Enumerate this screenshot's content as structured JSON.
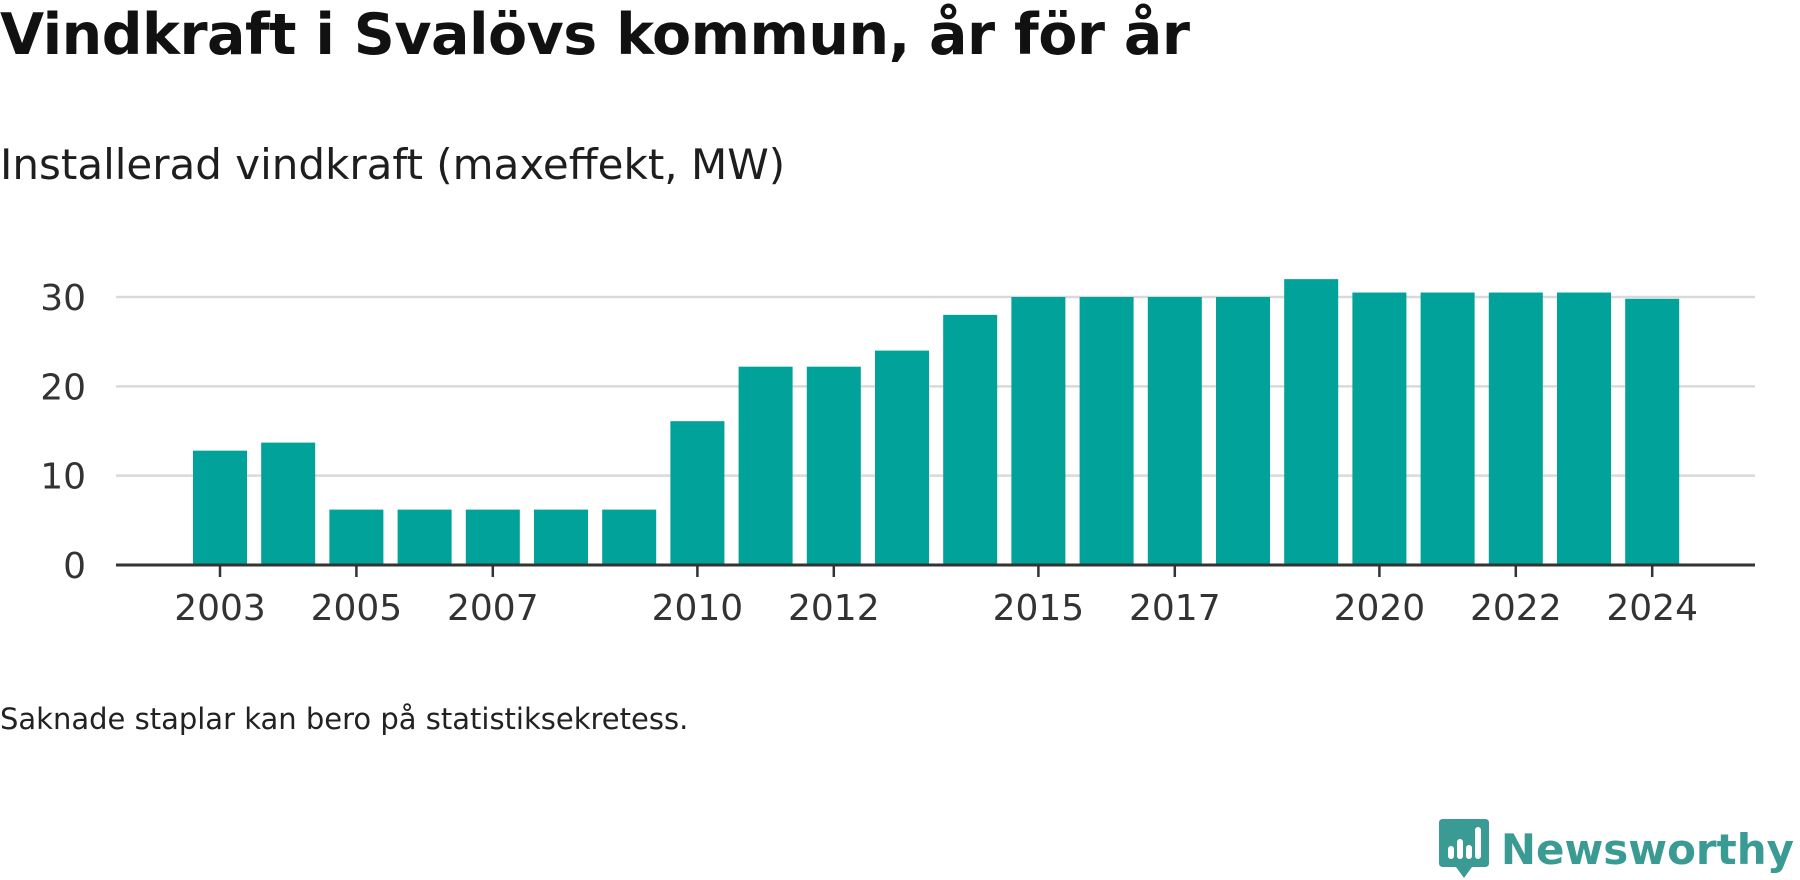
{
  "header": {
    "title": "Vindkraft i Svalövs kommun, år för år",
    "subtitle": "Installerad vindkraft (maxeffekt, MW)"
  },
  "footer": {
    "note": "Saknade staplar kan bero på statistiksekretess.",
    "brand": "Newsworthy",
    "brand_icon": "newsworthy-logo-icon"
  },
  "colors": {
    "bar": "#00a29a",
    "brand": "#3a9a94",
    "axis": "#333333",
    "grid": "#d9d9d9",
    "tick_text": "#333333"
  },
  "chart_data": {
    "type": "bar",
    "title": "Installerad vindkraft (maxeffekt, MW)",
    "categories": [
      "2003",
      "2004",
      "2005",
      "2006",
      "2007",
      "2008",
      "2009",
      "2010",
      "2011",
      "2012",
      "2013",
      "2014",
      "2015",
      "2016",
      "2017",
      "2018",
      "2019",
      "2020",
      "2021",
      "2022",
      "2023",
      "2024"
    ],
    "x_tick_labels": [
      "2003",
      "2005",
      "2007",
      "2010",
      "2012",
      "2015",
      "2017",
      "2020",
      "2022",
      "2024"
    ],
    "values": [
      12.8,
      13.7,
      6.2,
      6.2,
      6.2,
      6.2,
      6.2,
      16.1,
      22.2,
      22.2,
      24.0,
      28.0,
      30.0,
      30.0,
      30.0,
      30.0,
      32.0,
      30.5,
      30.5,
      30.5,
      30.5,
      29.8
    ],
    "y_ticks": [
      0,
      10,
      20,
      30
    ],
    "ylim": [
      0,
      30
    ],
    "grid": true,
    "xlabel": "",
    "ylabel": ""
  }
}
